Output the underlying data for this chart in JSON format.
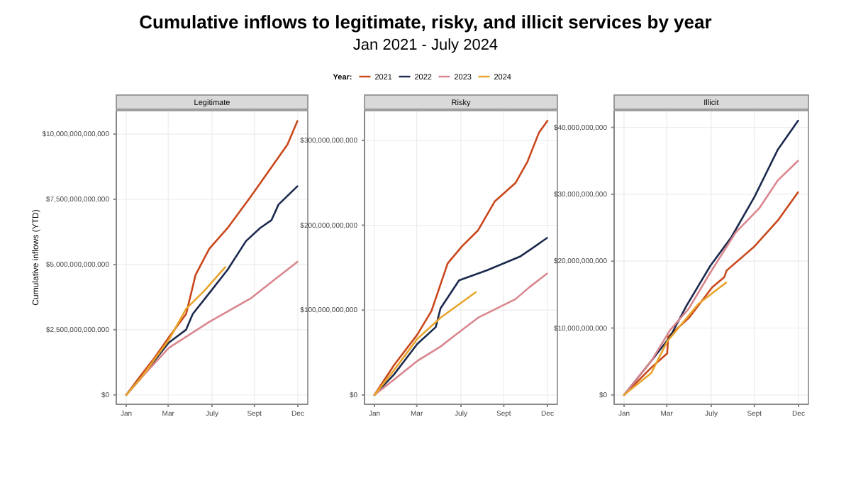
{
  "chart_data": [
    {
      "type": "other",
      "title": "Cumulative inflows to legitimate, risky, and illicit services by year",
      "subtitle": "Jan 2021 - July 2024"
    },
    {
      "type": "line",
      "title": "Legitimate",
      "ylabel": "Cumulative inflows (YTD)",
      "legend": "top",
      "legend_title": "Year:",
      "grid": true,
      "line_style": "solid",
      "marker": "none",
      "xlim": [
        "--01-01",
        "--12-31"
      ],
      "xticks": [
        {
          "value": "--01-01",
          "label": "Jan"
        },
        {
          "value": "--03-31",
          "label": "Mar"
        },
        {
          "value": "--07-02",
          "label": "July"
        },
        {
          "value": "--09-30",
          "label": "Sept"
        },
        {
          "value": "--12-31",
          "label": "Dec"
        }
      ],
      "ylim": [
        -360000000000.0,
        10900000000000.0
      ],
      "yticks": [
        {
          "value": 0,
          "label": "$0"
        },
        {
          "value": 2500000000000.0,
          "label": "$2,500,000,000,000"
        },
        {
          "value": 5000000000000.0,
          "label": "$5,000,000,000,000"
        },
        {
          "value": 7500000000000.0,
          "label": "$7,500,000,000,000"
        },
        {
          "value": 10000000000000.0,
          "label": "$10,000,000,000,000"
        }
      ],
      "series": [
        {
          "name": "2021",
          "color": "#c9471b",
          "x": [
            "--01-01",
            "--01-30",
            "--03-01",
            "--04-01",
            "--05-08",
            "--05-28",
            "--06-26",
            "--08-04",
            "--09-22",
            "--10-31",
            "--12-09",
            "--12-30"
          ],
          "values": [
            0,
            700000000000.0,
            1400000000000.0,
            2200000000000.0,
            3100000000000.0,
            4600000000000.0,
            5600000000000.0,
            6400000000000.0,
            7600000000000.0,
            8600000000000.0,
            9600000000000.0,
            10500000000000.0
          ]
        },
        {
          "name": "2022",
          "color": "#1b2a4e",
          "x": [
            "--01-01",
            "--01-30",
            "--04-01",
            "--05-08",
            "--05-22",
            "--06-26",
            "--08-04",
            "--09-12",
            "--10-12",
            "--11-05",
            "--11-20",
            "--12-30"
          ],
          "values": [
            0,
            600000000000.0,
            2000000000000.0,
            2500000000000.0,
            3100000000000.0,
            3900000000000.0,
            4800000000000.0,
            5900000000000.0,
            6400000000000.0,
            6700000000000.0,
            7300000000000.0,
            8000000000000.0
          ]
        },
        {
          "name": "2023",
          "color": "#d9868d",
          "x": [
            "--01-01",
            "--01-30",
            "--04-01",
            "--06-26",
            "--09-22",
            "--11-10",
            "--12-30"
          ],
          "values": [
            0,
            600000000000.0,
            1800000000000.0,
            2800000000000.0,
            3700000000000.0,
            4400000000000.0,
            5100000000000.0
          ]
        },
        {
          "name": "2024",
          "color": "#e9a42c",
          "x": [
            "--01-01",
            "--01-30",
            "--04-01",
            "--05-08",
            "--06-16",
            "--07-30"
          ],
          "values": [
            0,
            600000000000.0,
            2100000000000.0,
            3300000000000.0,
            4000000000000.0,
            4900000000000.0
          ]
        }
      ]
    },
    {
      "type": "line",
      "title": "Risky",
      "grid": true,
      "line_style": "solid",
      "marker": "none",
      "xlim": [
        "--01-01",
        "--12-31"
      ],
      "xticks": [
        {
          "value": "--01-01",
          "label": "Jan"
        },
        {
          "value": "--03-31",
          "label": "Mar"
        },
        {
          "value": "--07-02",
          "label": "July"
        },
        {
          "value": "--09-30",
          "label": "Sept"
        },
        {
          "value": "--12-31",
          "label": "Dec"
        }
      ],
      "ylim": [
        -11000000000.0,
        335000000000.0
      ],
      "yticks": [
        {
          "value": 0,
          "label": "$0"
        },
        {
          "value": 100000000000.0,
          "label": "$100,000,000,000"
        },
        {
          "value": 200000000000.0,
          "label": "$200,000,000,000"
        },
        {
          "value": 300000000000.0,
          "label": "$300,000,000,000"
        }
      ],
      "series": [
        {
          "color": "#c9471b",
          "x": [
            "--01-01",
            "--02-11",
            "--04-01",
            "--05-01",
            "--06-04",
            "--07-04",
            "--08-07",
            "--09-11",
            "--10-25",
            "--11-19",
            "--12-13",
            "--12-31"
          ],
          "values": [
            0,
            35000000000.0,
            71000000000.0,
            99000000000.0,
            155000000000.0,
            175000000000.0,
            194000000000.0,
            228000000000.0,
            250000000000.0,
            275000000000.0,
            309000000000.0,
            323000000000.0
          ]
        },
        {
          "color": "#1b2a4e",
          "x": [
            "--01-01",
            "--02-11",
            "--04-01",
            "--05-10",
            "--05-20",
            "--06-28",
            "--08-26",
            "--11-03",
            "--12-02",
            "--12-30"
          ],
          "values": [
            0,
            24000000000.0,
            60000000000.0,
            80000000000.0,
            102000000000.0,
            135000000000.0,
            147000000000.0,
            163000000000.0,
            174000000000.0,
            185000000000.0
          ]
        },
        {
          "color": "#d9868d",
          "x": [
            "--01-01",
            "--02-11",
            "--04-01",
            "--05-20",
            "--06-14",
            "--08-07",
            "--10-25",
            "--11-23",
            "--12-30"
          ],
          "values": [
            0,
            18000000000.0,
            40000000000.0,
            57000000000.0,
            68000000000.0,
            91000000000.0,
            113000000000.0,
            127000000000.0,
            143000000000.0
          ]
        },
        {
          "color": "#e9a42c",
          "x": [
            "--01-01",
            "--02-11",
            "--04-01",
            "--05-20",
            "--08-02"
          ],
          "values": [
            0,
            29000000000.0,
            66000000000.0,
            91000000000.0,
            121000000000.0
          ]
        }
      ]
    },
    {
      "type": "line",
      "title": "Illicit",
      "grid": true,
      "line_style": "solid",
      "marker": "none",
      "xlim": [
        "--01-01",
        "--12-31"
      ],
      "xticks": [
        {
          "value": "--01-01",
          "label": "Jan"
        },
        {
          "value": "--03-31",
          "label": "Mar"
        },
        {
          "value": "--07-02",
          "label": "July"
        },
        {
          "value": "--09-30",
          "label": "Sept"
        },
        {
          "value": "--12-31",
          "label": "Dec"
        }
      ],
      "ylim": [
        -1400000000.0,
        42500000000.0
      ],
      "yticks": [
        {
          "value": 0,
          "label": "$0"
        },
        {
          "value": 10000000000.0,
          "label": "$10,000,000,000"
        },
        {
          "value": 20000000000.0,
          "label": "$20,000,000,000"
        },
        {
          "value": 30000000000.0,
          "label": "$30,000,000,000"
        },
        {
          "value": 40000000000.0,
          "label": "$40,000,000,000"
        }
      ],
      "series": [
        {
          "color": "#c9471b",
          "x": [
            "--01-01",
            "--02-27",
            "--04-01",
            "--04-03",
            "--05-16",
            "--07-04",
            "--07-29",
            "--08-03",
            "--09-30",
            "--11-18",
            "--12-30"
          ],
          "values": [
            0,
            4100000000.0,
            6200000000.0,
            8700000000.0,
            11500000000.0,
            16100000000.0,
            17600000000.0,
            18600000000.0,
            22200000000.0,
            26100000000.0,
            30300000000.0
          ]
        },
        {
          "color": "#1b2a4e",
          "x": [
            "--01-01",
            "--02-27",
            "--04-07",
            "--05-11",
            "--06-30",
            "--08-13",
            "--09-30",
            "--11-18",
            "--12-30"
          ],
          "values": [
            0,
            5100000000.0,
            8700000000.0,
            13300000000.0,
            19300000000.0,
            23600000000.0,
            29600000000.0,
            36700000000.0,
            41000000000.0
          ]
        },
        {
          "color": "#d9868d",
          "x": [
            "--01-01",
            "--02-27",
            "--04-07",
            "--05-16",
            "--06-30",
            "--08-22",
            "--10-10",
            "--11-18",
            "--12-30"
          ],
          "values": [
            0,
            5100000000.0,
            9700000000.0,
            12900000000.0,
            18300000000.0,
            24300000000.0,
            27900000000.0,
            32100000000.0,
            35000000000.0
          ]
        },
        {
          "color": "#e9a42c",
          "x": [
            "--01-01",
            "--02-27",
            "--04-01",
            "--06-05",
            "--08-02"
          ],
          "values": [
            0,
            3300000000.0,
            8000000000.0,
            13600000000.0,
            16800000000.0
          ]
        }
      ]
    }
  ]
}
